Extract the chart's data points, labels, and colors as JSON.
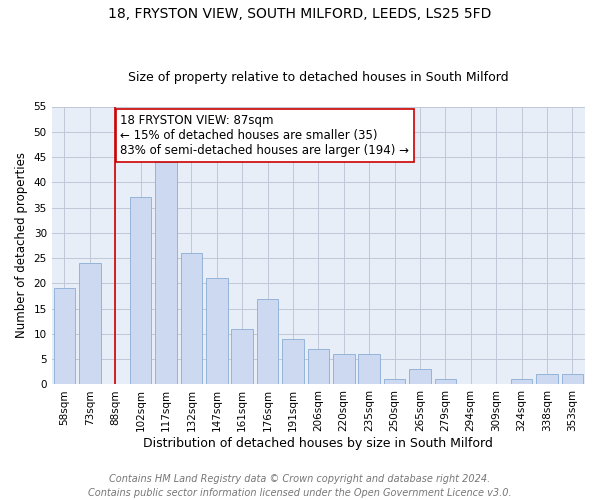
{
  "title1": "18, FRYSTON VIEW, SOUTH MILFORD, LEEDS, LS25 5FD",
  "title2": "Size of property relative to detached houses in South Milford",
  "xlabel": "Distribution of detached houses by size in South Milford",
  "ylabel": "Number of detached properties",
  "bar_color": "#ccd9f0",
  "bar_edgecolor": "#8aadd4",
  "categories": [
    "58sqm",
    "73sqm",
    "88sqm",
    "102sqm",
    "117sqm",
    "132sqm",
    "147sqm",
    "161sqm",
    "176sqm",
    "191sqm",
    "206sqm",
    "220sqm",
    "235sqm",
    "250sqm",
    "265sqm",
    "279sqm",
    "294sqm",
    "309sqm",
    "324sqm",
    "338sqm",
    "353sqm"
  ],
  "values": [
    19,
    24,
    0,
    37,
    44,
    26,
    21,
    11,
    17,
    9,
    7,
    6,
    6,
    1,
    3,
    1,
    0,
    0,
    1,
    2,
    2
  ],
  "vline_x": 2,
  "vline_color": "#cc0000",
  "annotation_text": "18 FRYSTON VIEW: 87sqm\n← 15% of detached houses are smaller (35)\n83% of semi-detached houses are larger (194) →",
  "annotation_box_color": "white",
  "annotation_box_edgecolor": "#cc0000",
  "ylim": [
    0,
    55
  ],
  "yticks": [
    0,
    5,
    10,
    15,
    20,
    25,
    30,
    35,
    40,
    45,
    50,
    55
  ],
  "grid_color": "#c0c8d8",
  "background_color": "#e8eef8",
  "footer": "Contains HM Land Registry data © Crown copyright and database right 2024.\nContains public sector information licensed under the Open Government Licence v3.0.",
  "title1_fontsize": 10,
  "title2_fontsize": 9,
  "xlabel_fontsize": 9,
  "ylabel_fontsize": 8.5,
  "annotation_fontsize": 8.5,
  "footer_fontsize": 7,
  "tick_fontsize": 7.5
}
